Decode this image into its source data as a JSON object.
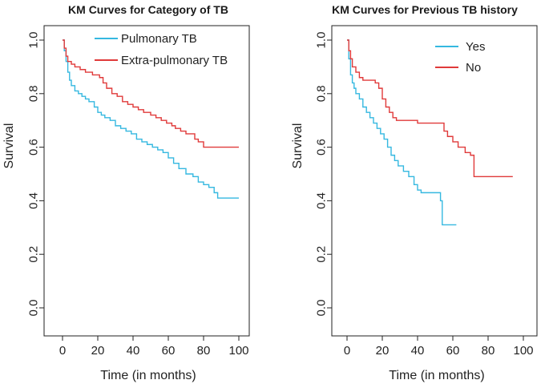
{
  "chart_data": [
    {
      "type": "line",
      "id": "left",
      "title": "KM Curves for Category of TB",
      "xlabel": "Time (in months)",
      "ylabel": "Survival",
      "xlim": [
        0,
        100
      ],
      "ylim": [
        0,
        1
      ],
      "xticks": [
        "0",
        "20",
        "40",
        "60",
        "80",
        "100"
      ],
      "yticks": [
        "0.0",
        "0.2",
        "0.4",
        "0.6",
        "0.8",
        "1.0"
      ],
      "legend": [
        "Pulmonary TB",
        "Extra-pulmonary TB"
      ],
      "series": [
        {
          "name": "Pulmonary TB",
          "color": "#35b8e0",
          "points": [
            [
              0,
              1.0
            ],
            [
              1,
              0.96
            ],
            [
              2,
              0.92
            ],
            [
              3,
              0.88
            ],
            [
              4,
              0.85
            ],
            [
              5,
              0.83
            ],
            [
              7,
              0.81
            ],
            [
              9,
              0.8
            ],
            [
              11,
              0.79
            ],
            [
              13,
              0.78
            ],
            [
              15,
              0.77
            ],
            [
              18,
              0.75
            ],
            [
              20,
              0.73
            ],
            [
              22,
              0.72
            ],
            [
              24,
              0.71
            ],
            [
              27,
              0.7
            ],
            [
              30,
              0.68
            ],
            [
              33,
              0.67
            ],
            [
              36,
              0.66
            ],
            [
              39,
              0.65
            ],
            [
              42,
              0.63
            ],
            [
              45,
              0.62
            ],
            [
              48,
              0.61
            ],
            [
              51,
              0.6
            ],
            [
              54,
              0.59
            ],
            [
              57,
              0.58
            ],
            [
              60,
              0.56
            ],
            [
              63,
              0.54
            ],
            [
              66,
              0.52
            ],
            [
              70,
              0.5
            ],
            [
              74,
              0.49
            ],
            [
              77,
              0.47
            ],
            [
              80,
              0.46
            ],
            [
              83,
              0.45
            ],
            [
              86,
              0.43
            ],
            [
              88,
              0.41
            ],
            [
              100,
              0.41
            ]
          ]
        },
        {
          "name": "Extra-pulmonary TB",
          "color": "#e03a3a",
          "points": [
            [
              0,
              1.0
            ],
            [
              1,
              0.97
            ],
            [
              2,
              0.94
            ],
            [
              3,
              0.92
            ],
            [
              5,
              0.91
            ],
            [
              7,
              0.9
            ],
            [
              10,
              0.89
            ],
            [
              13,
              0.88
            ],
            [
              17,
              0.87
            ],
            [
              21,
              0.86
            ],
            [
              23,
              0.84
            ],
            [
              25,
              0.82
            ],
            [
              28,
              0.8
            ],
            [
              31,
              0.79
            ],
            [
              34,
              0.77
            ],
            [
              37,
              0.76
            ],
            [
              40,
              0.75
            ],
            [
              43,
              0.74
            ],
            [
              46,
              0.73
            ],
            [
              50,
              0.72
            ],
            [
              53,
              0.71
            ],
            [
              56,
              0.7
            ],
            [
              59,
              0.69
            ],
            [
              62,
              0.68
            ],
            [
              64,
              0.67
            ],
            [
              67,
              0.66
            ],
            [
              70,
              0.65
            ],
            [
              75,
              0.63
            ],
            [
              77,
              0.62
            ],
            [
              80,
              0.6
            ],
            [
              100,
              0.6
            ]
          ]
        }
      ]
    },
    {
      "type": "line",
      "id": "right",
      "title": "KM Curves for Previous TB history",
      "xlabel": "Time (in months)",
      "ylabel": "Survival",
      "xlim": [
        0,
        100
      ],
      "ylim": [
        0,
        1
      ],
      "xticks": [
        "0",
        "20",
        "40",
        "60",
        "80",
        "100"
      ],
      "yticks": [
        "0.0",
        "0.2",
        "0.4",
        "0.6",
        "0.8",
        "1.0"
      ],
      "legend": [
        "Yes",
        "No"
      ],
      "series": [
        {
          "name": "Yes",
          "color": "#35b8e0",
          "points": [
            [
              0,
              1.0
            ],
            [
              1,
              0.93
            ],
            [
              2,
              0.87
            ],
            [
              3,
              0.84
            ],
            [
              4,
              0.82
            ],
            [
              5,
              0.8
            ],
            [
              7,
              0.78
            ],
            [
              9,
              0.75
            ],
            [
              11,
              0.73
            ],
            [
              13,
              0.71
            ],
            [
              15,
              0.69
            ],
            [
              17,
              0.67
            ],
            [
              19,
              0.65
            ],
            [
              21,
              0.63
            ],
            [
              23,
              0.6
            ],
            [
              25,
              0.57
            ],
            [
              27,
              0.55
            ],
            [
              29,
              0.53
            ],
            [
              32,
              0.51
            ],
            [
              35,
              0.49
            ],
            [
              38,
              0.46
            ],
            [
              40,
              0.44
            ],
            [
              42,
              0.43
            ],
            [
              53,
              0.4
            ],
            [
              54,
              0.31
            ],
            [
              62,
              0.31
            ]
          ]
        },
        {
          "name": "No",
          "color": "#e03a3a",
          "points": [
            [
              0,
              1.0
            ],
            [
              1,
              0.96
            ],
            [
              2,
              0.93
            ],
            [
              3,
              0.9
            ],
            [
              5,
              0.88
            ],
            [
              7,
              0.86
            ],
            [
              9,
              0.85
            ],
            [
              16,
              0.84
            ],
            [
              18,
              0.82
            ],
            [
              20,
              0.78
            ],
            [
              22,
              0.75
            ],
            [
              24,
              0.73
            ],
            [
              26,
              0.71
            ],
            [
              28,
              0.7
            ],
            [
              40,
              0.69
            ],
            [
              55,
              0.66
            ],
            [
              57,
              0.64
            ],
            [
              60,
              0.62
            ],
            [
              63,
              0.6
            ],
            [
              67,
              0.58
            ],
            [
              70,
              0.57
            ],
            [
              72,
              0.49
            ],
            [
              94,
              0.49
            ]
          ]
        }
      ]
    }
  ]
}
